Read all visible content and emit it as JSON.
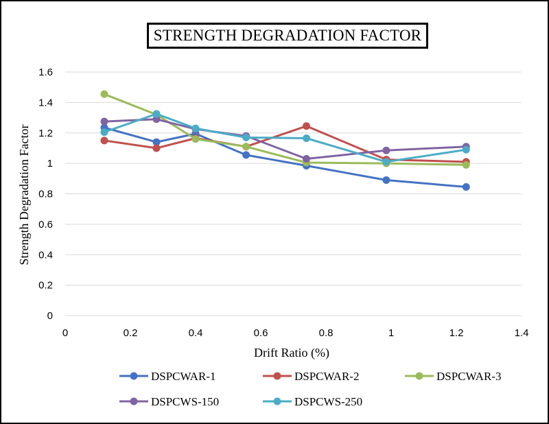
{
  "chart_data": {
    "type": "line",
    "title": "STRENGTH DEGRADATION  FACTOR",
    "xlabel": "Drift Ratio (%)",
    "ylabel": "Strength Degradation Factor",
    "xlim": [
      0,
      1.4
    ],
    "ylim": [
      0,
      1.6
    ],
    "xticks": [
      "0",
      "0.2",
      "0.4",
      "0.6",
      "0.8",
      "1",
      "1.2",
      "1.4"
    ],
    "yticks": [
      "0",
      "0.2",
      "0.4",
      "0.6",
      "0.8",
      "1",
      "1.2",
      "1.4",
      "1.6"
    ],
    "grid": "horizontal",
    "legend_position": "bottom",
    "series": [
      {
        "name": "DSPCWAR-1",
        "color": "#4472C4",
        "x": [
          0.12,
          0.28,
          0.4,
          0.555,
          0.74,
          0.985,
          1.23
        ],
        "y": [
          1.235,
          1.14,
          1.195,
          1.055,
          0.985,
          0.89,
          0.845
        ]
      },
      {
        "name": "DSPCWAR-2",
        "color": "#C0504D",
        "x": [
          0.12,
          0.28,
          0.4,
          0.555,
          0.74,
          0.985,
          1.23
        ],
        "y": [
          1.15,
          1.1,
          1.165,
          1.11,
          1.245,
          1.025,
          1.01
        ]
      },
      {
        "name": "DSPCWAR-3",
        "color": "#9BBB59",
        "x": [
          0.12,
          0.28,
          0.4,
          0.555,
          0.74,
          0.985,
          1.23
        ],
        "y": [
          1.455,
          1.32,
          1.16,
          1.11,
          1.005,
          1.0,
          0.99
        ]
      },
      {
        "name": "DSPCWS-150",
        "color": "#8064A2",
        "x": [
          0.12,
          0.28,
          0.4,
          0.555,
          0.74,
          0.985,
          1.23
        ],
        "y": [
          1.275,
          1.29,
          1.225,
          1.18,
          1.03,
          1.085,
          1.11
        ]
      },
      {
        "name": "DSPCWS-250",
        "color": "#4BACC6",
        "x": [
          0.12,
          0.28,
          0.4,
          0.555,
          0.74,
          0.985,
          1.23
        ],
        "y": [
          1.205,
          1.325,
          1.23,
          1.17,
          1.165,
          1.01,
          1.09
        ]
      }
    ]
  }
}
